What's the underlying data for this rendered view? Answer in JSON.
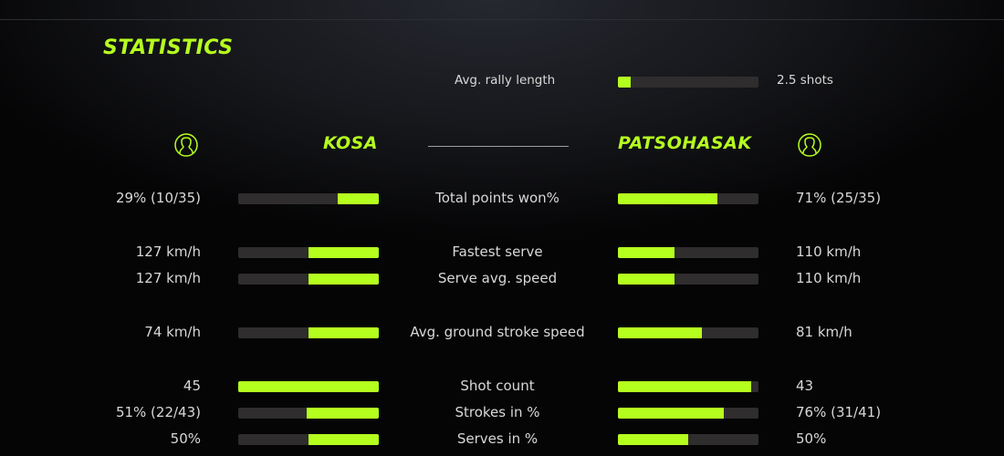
{
  "title": "STATISTICS",
  "accent_color": "#b5ff1f",
  "rally": {
    "label": "Avg. rally length",
    "value": "2.5 shots",
    "fill_percent": 9
  },
  "players": {
    "left": {
      "name": "KOSA",
      "icon": "user-icon"
    },
    "right": {
      "name": "PATSOHASAK",
      "icon": "user-icon"
    }
  },
  "stats": [
    {
      "label": "Total points won%",
      "left": "29% (10/35)",
      "right": "71% (25/35)",
      "left_fill": 29,
      "right_fill": 71
    },
    {
      "label": "Fastest serve",
      "left": "127 km/h",
      "right": "110 km/h",
      "left_fill": 50,
      "right_fill": 40
    },
    {
      "label": "Serve avg. speed",
      "left": "127 km/h",
      "right": "110 km/h",
      "left_fill": 50,
      "right_fill": 40
    },
    {
      "label": "Avg. ground stroke speed",
      "left": "74 km/h",
      "right": "81 km/h",
      "left_fill": 50,
      "right_fill": 60
    },
    {
      "label": "Shot count",
      "left": "45",
      "right": "43",
      "left_fill": 100,
      "right_fill": 95
    },
    {
      "label": "Strokes in %",
      "left": "51% (22/43)",
      "right": "76% (31/41)",
      "left_fill": 51,
      "right_fill": 75
    },
    {
      "label": "Serves in %",
      "left": "50%",
      "right": "50%",
      "left_fill": 50,
      "right_fill": 50
    }
  ]
}
